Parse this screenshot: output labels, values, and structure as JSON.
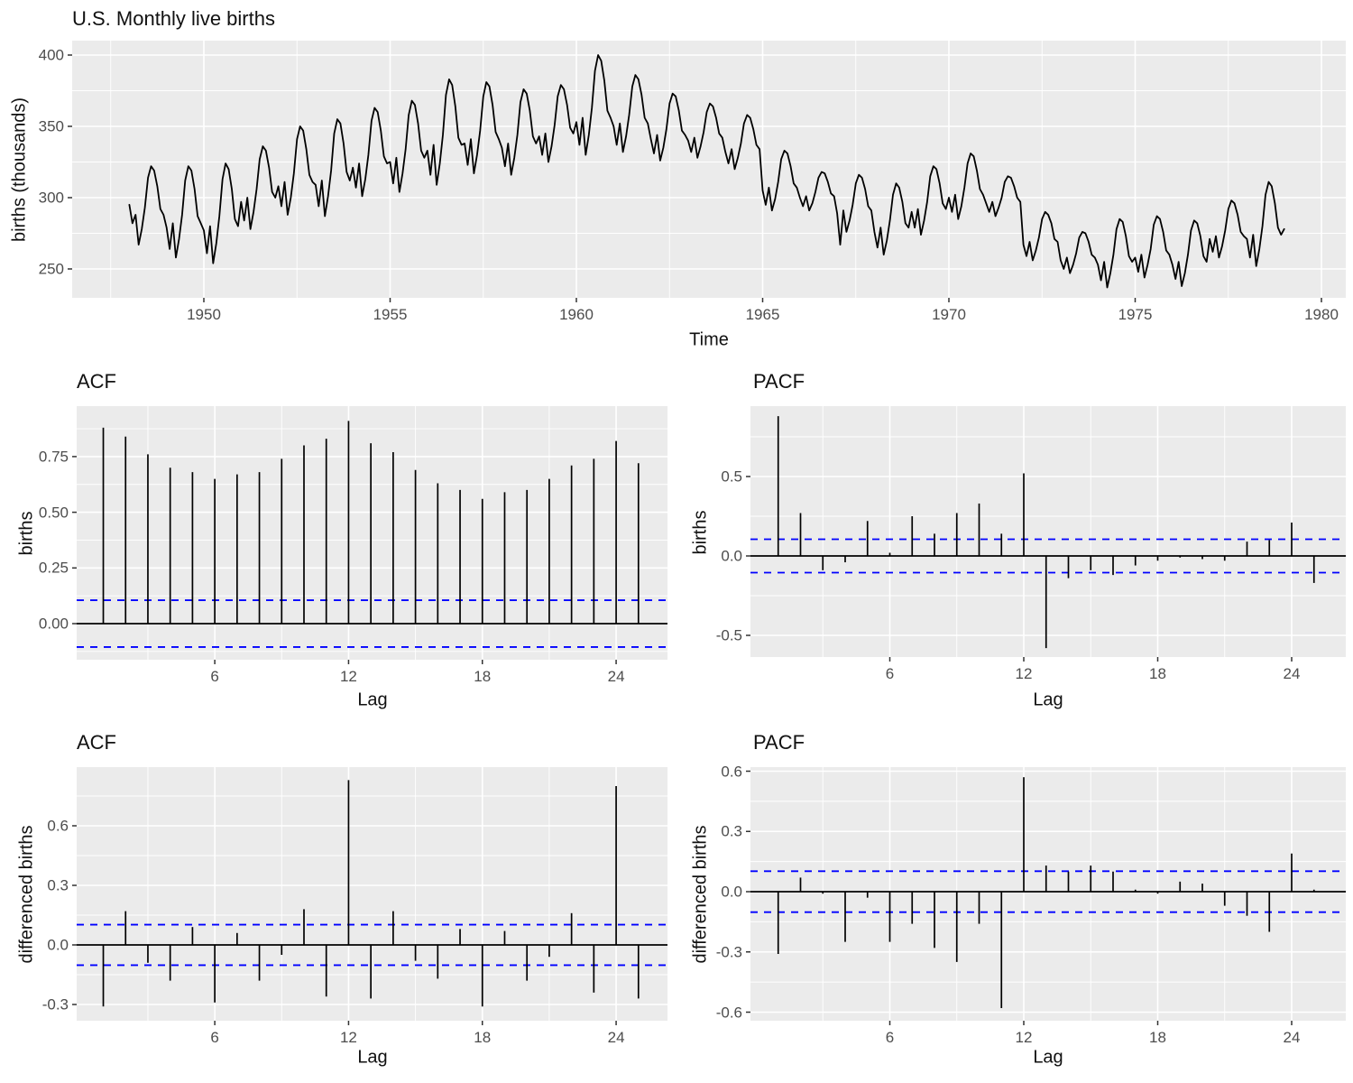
{
  "figure": {
    "background": "#FFFFFF",
    "panel_bg": "#EBEBEB",
    "grid_color": "#FFFFFF",
    "tick_mark_color": "#333333",
    "tick_text_color": "#4D4D4D",
    "title_color": "#111111",
    "series_color": "#000000",
    "conf_line_color": "#0000FF"
  },
  "chart_data": {
    "charts": [
      {
        "id": "ts",
        "type": "line",
        "title": "U.S. Monthly live births",
        "xlabel": "Time",
        "ylabel": "births (thousands)",
        "x_ticks": [
          {
            "v": 1950,
            "label": "1950"
          },
          {
            "v": 1955,
            "label": "1955"
          },
          {
            "v": 1960,
            "label": "1960"
          },
          {
            "v": 1965,
            "label": "1965"
          },
          {
            "v": 1970,
            "label": "1970"
          },
          {
            "v": 1975,
            "label": "1975"
          },
          {
            "v": 1980,
            "label": "1980"
          }
        ],
        "x_minor": [
          1947.5,
          1952.5,
          1957.5,
          1962.5,
          1967.5,
          1972.5,
          1977.5
        ],
        "y_ticks": [
          {
            "v": 250,
            "label": "250"
          },
          {
            "v": 300,
            "label": "300"
          },
          {
            "v": 350,
            "label": "350"
          },
          {
            "v": 400,
            "label": "400"
          }
        ],
        "y_minor": [
          275,
          325,
          375
        ],
        "x_domain": [
          1946.46,
          1980.65
        ],
        "y_domain": [
          228,
          409.5
        ],
        "series": {
          "name": "births",
          "start_year": 1948,
          "frequency": "monthly",
          "values": [
            295,
            282,
            288,
            267,
            278,
            293,
            314,
            322,
            319,
            308,
            292,
            288,
            279,
            264,
            282,
            258,
            271,
            288,
            312,
            322,
            319,
            306,
            287,
            282,
            277,
            261,
            280,
            254,
            268,
            287,
            313,
            324,
            320,
            306,
            285,
            280,
            297,
            284,
            300,
            278,
            290,
            306,
            327,
            336,
            333,
            321,
            304,
            300,
            308,
            294,
            311,
            288,
            300,
            317,
            341,
            350,
            347,
            334,
            316,
            311,
            309,
            294,
            312,
            287,
            301,
            319,
            345,
            355,
            352,
            338,
            318,
            312,
            321,
            307,
            324,
            301,
            313,
            330,
            354,
            363,
            360,
            347,
            329,
            324,
            325,
            310,
            328,
            304,
            317,
            334,
            358,
            368,
            365,
            352,
            333,
            328,
            333,
            316,
            337,
            309,
            324,
            344,
            372,
            383,
            379,
            364,
            342,
            337,
            338,
            323,
            341,
            317,
            330,
            347,
            371,
            381,
            378,
            365,
            346,
            341,
            335,
            322,
            338,
            316,
            328,
            344,
            367,
            376,
            373,
            361,
            343,
            338,
            343,
            330,
            345,
            325,
            336,
            351,
            371,
            379,
            376,
            365,
            349,
            345,
            353,
            337,
            356,
            330,
            344,
            363,
            389,
            400,
            396,
            382,
            361,
            356,
            350,
            337,
            352,
            332,
            343,
            358,
            378,
            386,
            383,
            372,
            356,
            352,
            341,
            331,
            344,
            326,
            335,
            348,
            366,
            373,
            371,
            361,
            347,
            344,
            340,
            332,
            342,
            328,
            336,
            346,
            360,
            366,
            364,
            356,
            345,
            342,
            332,
            324,
            334,
            320,
            328,
            338,
            352,
            358,
            356,
            348,
            337,
            334,
            305,
            295,
            307,
            291,
            299,
            311,
            327,
            333,
            331,
            322,
            310,
            307,
            300,
            294,
            301,
            291,
            296,
            304,
            314,
            318,
            317,
            311,
            303,
            301,
            289,
            267,
            291,
            276,
            284,
            295,
            310,
            316,
            314,
            306,
            294,
            291,
            276,
            265,
            279,
            260,
            270,
            284,
            302,
            310,
            307,
            297,
            282,
            279,
            290,
            279,
            292,
            274,
            284,
            297,
            315,
            322,
            320,
            310,
            296,
            292,
            300,
            290,
            302,
            285,
            294,
            307,
            324,
            331,
            329,
            319,
            306,
            302,
            296,
            290,
            297,
            287,
            293,
            300,
            311,
            315,
            314,
            308,
            300,
            297,
            267,
            259,
            269,
            256,
            263,
            272,
            285,
            290,
            288,
            282,
            271,
            269,
            256,
            250,
            258,
            247,
            253,
            261,
            272,
            276,
            275,
            269,
            260,
            258,
            253,
            242,
            255,
            237,
            247,
            260,
            278,
            285,
            283,
            273,
            259,
            255,
            258,
            248,
            260,
            244,
            253,
            264,
            281,
            287,
            285,
            276,
            263,
            260,
            253,
            243,
            255,
            238,
            247,
            260,
            277,
            284,
            282,
            273,
            259,
            255,
            271,
            262,
            273,
            258,
            266,
            277,
            292,
            298,
            296,
            288,
            276,
            273,
            271,
            258,
            274,
            252,
            264,
            280,
            302,
            311,
            308,
            296,
            279,
            274,
            278
          ]
        }
      },
      {
        "id": "acf1",
        "type": "acf",
        "title": "ACF",
        "xlabel": "Lag",
        "ylabel": "births",
        "x_ticks": [
          {
            "v": 6,
            "label": "6"
          },
          {
            "v": 12,
            "label": "12"
          },
          {
            "v": 18,
            "label": "18"
          },
          {
            "v": 24,
            "label": "24"
          }
        ],
        "x_minor": [
          3,
          9,
          15,
          21
        ],
        "y_ticks": [
          {
            "v": 0,
            "label": "0.00"
          },
          {
            "v": 0.25,
            "label": "0.25"
          },
          {
            "v": 0.5,
            "label": "0.50"
          },
          {
            "v": 0.75,
            "label": "0.75"
          }
        ],
        "y_minor": [
          -0.125,
          0.125,
          0.375,
          0.625,
          0.875
        ],
        "x_domain": [
          0,
          26.3
        ],
        "y_domain": [
          -0.16,
          0.98
        ],
        "conf_band": 0.105,
        "first_lag": 1,
        "values": [
          0.88,
          0.84,
          0.76,
          0.7,
          0.68,
          0.65,
          0.67,
          0.68,
          0.74,
          0.8,
          0.83,
          0.91,
          0.81,
          0.77,
          0.69,
          0.63,
          0.6,
          0.56,
          0.59,
          0.6,
          0.65,
          0.71,
          0.74,
          0.82,
          0.72
        ]
      },
      {
        "id": "pacf1",
        "type": "acf",
        "title": "PACF",
        "xlabel": "Lag",
        "ylabel": "births",
        "x_ticks": [
          {
            "v": 6,
            "label": "6"
          },
          {
            "v": 12,
            "label": "12"
          },
          {
            "v": 18,
            "label": "18"
          },
          {
            "v": 24,
            "label": "24"
          }
        ],
        "x_minor": [
          3,
          9,
          15,
          21
        ],
        "y_ticks": [
          {
            "v": -0.5,
            "label": "-0.5"
          },
          {
            "v": 0,
            "label": "0.0"
          },
          {
            "v": 0.5,
            "label": "0.5"
          }
        ],
        "y_minor": [
          -0.25,
          0.25,
          0.75
        ],
        "x_domain": [
          0,
          26.4
        ],
        "y_domain": [
          -0.65,
          0.95
        ],
        "conf_band": 0.105,
        "first_lag": 1,
        "values": [
          0.88,
          0.27,
          -0.09,
          -0.04,
          0.22,
          0.02,
          0.25,
          0.14,
          0.27,
          0.33,
          0.14,
          0.52,
          -0.58,
          -0.14,
          -0.09,
          -0.12,
          -0.06,
          -0.03,
          -0.01,
          -0.02,
          -0.03,
          0.09,
          0.1,
          0.21,
          -0.17
        ]
      },
      {
        "id": "acf2",
        "type": "acf",
        "title": "ACF",
        "xlabel": "Lag",
        "ylabel": "differenced births",
        "x_ticks": [
          {
            "v": 6,
            "label": "6"
          },
          {
            "v": 12,
            "label": "12"
          },
          {
            "v": 18,
            "label": "18"
          },
          {
            "v": 24,
            "label": "24"
          }
        ],
        "x_minor": [
          3,
          9,
          15,
          21
        ],
        "y_ticks": [
          {
            "v": -0.3,
            "label": "-0.3"
          },
          {
            "v": 0,
            "label": "0.0"
          },
          {
            "v": 0.3,
            "label": "0.3"
          },
          {
            "v": 0.6,
            "label": "0.6"
          }
        ],
        "y_minor": [
          -0.15,
          0.15,
          0.45,
          0.75
        ],
        "x_domain": [
          0,
          26.3
        ],
        "y_domain": [
          -0.37,
          0.89
        ],
        "conf_band": 0.102,
        "first_lag": 1,
        "values": [
          -0.31,
          0.17,
          -0.09,
          -0.18,
          0.09,
          -0.29,
          0.06,
          -0.18,
          -0.05,
          0.18,
          -0.26,
          0.83,
          -0.27,
          0.17,
          -0.08,
          -0.17,
          0.08,
          -0.31,
          0.07,
          -0.18,
          -0.06,
          0.16,
          -0.24,
          0.8,
          -0.27
        ]
      },
      {
        "id": "pacf2",
        "type": "acf",
        "title": "PACF",
        "xlabel": "Lag",
        "ylabel": "differenced births",
        "x_ticks": [
          {
            "v": 6,
            "label": "6"
          },
          {
            "v": 12,
            "label": "12"
          },
          {
            "v": 18,
            "label": "18"
          },
          {
            "v": 24,
            "label": "24"
          }
        ],
        "x_minor": [
          3,
          9,
          15,
          21
        ],
        "y_ticks": [
          {
            "v": -0.6,
            "label": "-0.6"
          },
          {
            "v": -0.3,
            "label": "-0.3"
          },
          {
            "v": 0,
            "label": "0.0"
          },
          {
            "v": 0.3,
            "label": "0.3"
          },
          {
            "v": 0.6,
            "label": "0.6"
          }
        ],
        "y_minor": [
          -0.45,
          -0.15,
          0.15,
          0.45
        ],
        "x_domain": [
          0,
          26.4
        ],
        "y_domain": [
          -0.64,
          0.63
        ],
        "conf_band": 0.102,
        "first_lag": 1,
        "values": [
          -0.31,
          0.07,
          -0.01,
          -0.25,
          -0.03,
          -0.25,
          -0.16,
          -0.28,
          -0.35,
          -0.16,
          -0.58,
          0.57,
          0.13,
          0.1,
          0.13,
          0.1,
          0.01,
          -0.01,
          0.05,
          0.04,
          -0.07,
          -0.12,
          -0.2,
          0.19,
          0.01
        ]
      }
    ]
  }
}
